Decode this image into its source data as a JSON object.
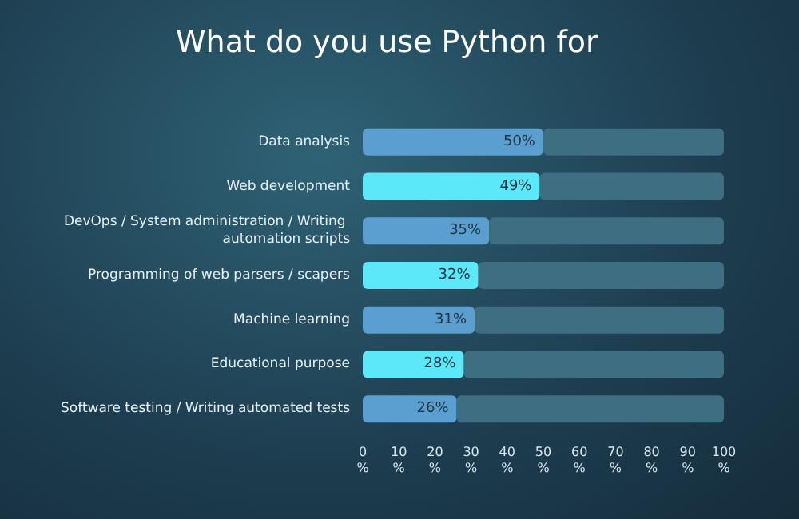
{
  "chart_data": {
    "type": "bar",
    "orientation": "horizontal",
    "title": "What do you use Python for",
    "categories": [
      "Data analysis",
      "Web development",
      "DevOps / System administration / Writing automation scripts",
      "Programming of web parsers / scapers",
      "Machine learning",
      "Educational purpose",
      "Software testing / Writing automated tests"
    ],
    "series": [
      {
        "colors": [
          "#5a9fd0",
          "#5ce8f8",
          "#5a9fd0",
          "#5ce8f8",
          "#5a9fd0",
          "#5ce8f8",
          "#5a9fd0"
        ],
        "values": [
          50,
          49,
          35,
          32,
          31,
          28,
          26
        ],
        "value_labels": [
          "50%",
          "49%",
          "35%",
          "32%",
          "31%",
          "28%",
          "26%"
        ]
      },
      {
        "color": "#3d6e82",
        "values": [
          50,
          51,
          65,
          68,
          69,
          72,
          74
        ]
      }
    ],
    "stacked": true,
    "xlim": [
      0,
      100
    ],
    "xticks": [
      {
        "value": 0,
        "label": "0 %"
      },
      {
        "value": 10,
        "label": "10 %"
      },
      {
        "value": 20,
        "label": "20 %"
      },
      {
        "value": 30,
        "label": "30 %"
      },
      {
        "value": 40,
        "label": "40 %"
      },
      {
        "value": 50,
        "label": "50 %"
      },
      {
        "value": 60,
        "label": "60 %"
      },
      {
        "value": 70,
        "label": "70 %"
      },
      {
        "value": 80,
        "label": "80 %"
      },
      {
        "value": 90,
        "label": "90 %"
      },
      {
        "value": 100,
        "label": "100 %"
      }
    ],
    "grid": false
  }
}
